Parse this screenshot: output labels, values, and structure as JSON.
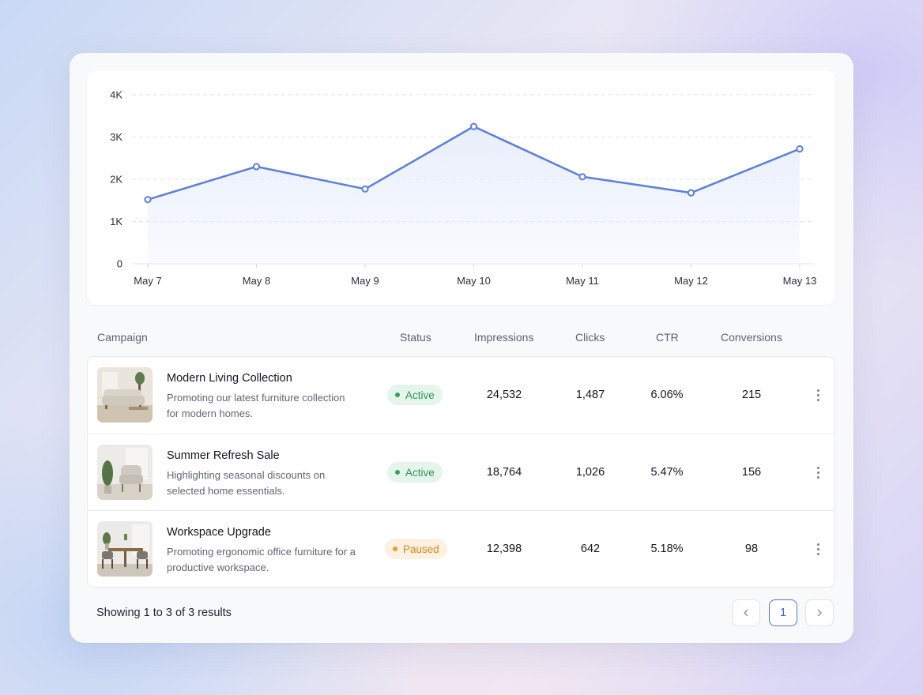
{
  "chart_data": {
    "type": "area",
    "x": [
      "May 7",
      "May 8",
      "May 9",
      "May 10",
      "May 11",
      "May 12",
      "May 13"
    ],
    "values": [
      1520,
      2300,
      1770,
      3250,
      2060,
      1680,
      2720
    ],
    "yticks": [
      "0",
      "1K",
      "2K",
      "3K",
      "4K"
    ],
    "ylim": [
      0,
      4000
    ],
    "grid": true,
    "line_color": "#5b7fe0",
    "fill_color": "#e8eefc"
  },
  "table": {
    "headers": {
      "campaign": "Campaign",
      "status": "Status",
      "impressions": "Impressions",
      "clicks": "Clicks",
      "ctr": "CTR",
      "conversions": "Conversions"
    },
    "rows": [
      {
        "title": "Modern Living Collection",
        "desc": "Promoting our latest furniture collection for modern homes.",
        "status": "Active",
        "impressions": "24,532",
        "clicks": "1,487",
        "ctr": "6.06%",
        "conversions": "215",
        "image": "sofa-photo"
      },
      {
        "title": "Summer Refresh Sale",
        "desc": "Highlighting seasonal discounts on selected home essentials.",
        "status": "Active",
        "impressions": "18,764",
        "clicks": "1,026",
        "ctr": "5.47%",
        "conversions": "156",
        "image": "armchair-photo"
      },
      {
        "title": "Workspace Upgrade",
        "desc": "Promoting ergonomic office furniture for a productive workspace.",
        "status": "Paused",
        "impressions": "12,398",
        "clicks": "642",
        "ctr": "5.18%",
        "conversions": "98",
        "image": "dining-table-photo"
      }
    ]
  },
  "footer": {
    "summary": "Showing 1 to 3 of 3 results",
    "current_page": "1",
    "prev_icon": "chevron-left-icon",
    "next_icon": "chevron-right-icon"
  },
  "colors": {
    "active": "#2d9553",
    "paused": "#d9871c",
    "accent": "#4f74d9"
  }
}
